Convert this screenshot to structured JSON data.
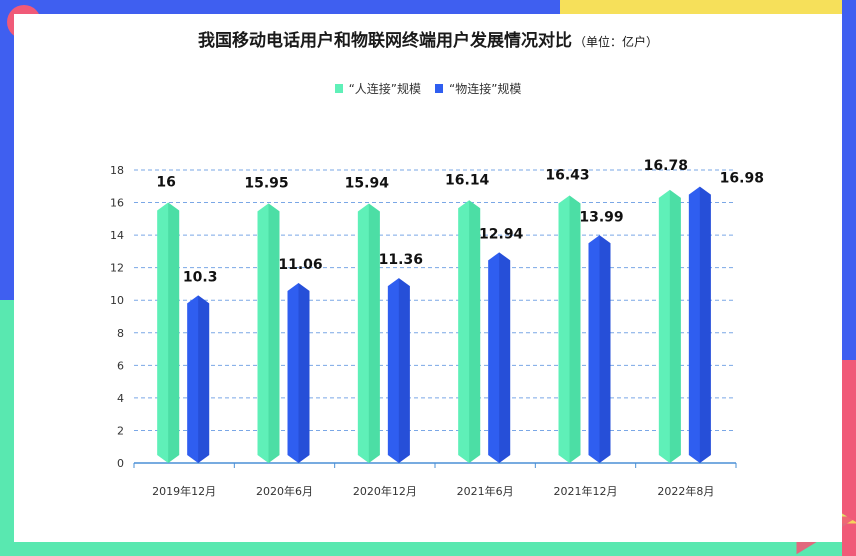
{
  "title": "我国移动电话用户和物联网终端用户发展情况对比",
  "unit": "（单位：亿户）",
  "colors": {
    "series1": "#5ff0b8",
    "series2": "#2f5ef0",
    "frame_blue": "#3f5ff0",
    "frame_yellow": "#f6e05a",
    "frame_green": "#59e8b0",
    "frame_pink": "#f05a78"
  },
  "chart_data": {
    "type": "bar",
    "categories": [
      "2019年12月",
      "2020年6月",
      "2020年12月",
      "2021年6月",
      "2021年12月",
      "2022年8月"
    ],
    "series": [
      {
        "name": "“人连接”规模",
        "values": [
          16,
          15.95,
          15.94,
          16.14,
          16.43,
          16.78
        ]
      },
      {
        "name": "“物连接”规模",
        "values": [
          10.3,
          11.06,
          11.36,
          12.94,
          13.99,
          16.98
        ]
      }
    ],
    "ylim": [
      0,
      18
    ],
    "yticks": [
      0,
      2,
      4,
      6,
      8,
      10,
      12,
      14,
      16,
      18
    ],
    "grid": true,
    "legend_position": "top-center"
  }
}
